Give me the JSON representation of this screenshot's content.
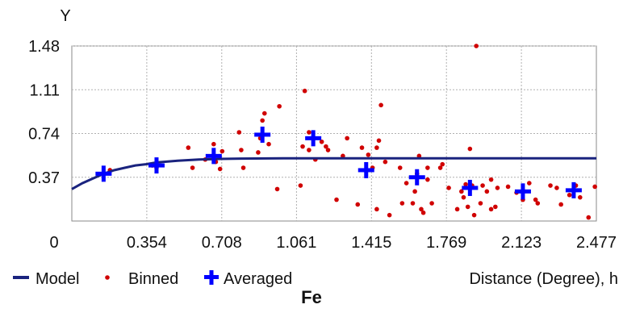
{
  "caption": "Fe",
  "chart_data": {
    "type": "scatter",
    "title": "",
    "ylabel": "Y",
    "xlabel": "Distance (Degree), h",
    "xlim": [
      0,
      2.477
    ],
    "ylim": [
      0,
      1.48
    ],
    "x_ticks": [
      "0",
      "0.354",
      "0.708",
      "1.061",
      "1.415",
      "1.769",
      "2.123",
      "2.477"
    ],
    "y_ticks": [
      "0.37",
      "0.74",
      "1.11",
      "1.48"
    ],
    "grid": true,
    "legend_position": "bottom-left",
    "colors": {
      "model": "#1a237e",
      "binned": "#d00000",
      "averaged": "#0000ff",
      "grid": "#b0b0b0"
    },
    "series": [
      {
        "name": "Model",
        "kind": "line",
        "x": [
          0,
          0.05,
          0.1,
          0.15,
          0.2,
          0.25,
          0.3,
          0.35,
          0.4,
          0.5,
          0.6,
          0.7,
          0.8,
          1.0,
          1.5,
          2.0,
          2.477
        ],
        "y": [
          0.27,
          0.32,
          0.36,
          0.4,
          0.43,
          0.45,
          0.47,
          0.48,
          0.495,
          0.51,
          0.52,
          0.525,
          0.528,
          0.53,
          0.53,
          0.53,
          0.53
        ]
      },
      {
        "name": "Binned",
        "kind": "points",
        "x": [
          0.15,
          0.18,
          0.38,
          0.4,
          0.55,
          0.57,
          0.63,
          0.67,
          0.68,
          0.7,
          0.71,
          0.79,
          0.8,
          0.81,
          0.88,
          0.89,
          0.9,
          0.91,
          0.93,
          0.97,
          0.98,
          1.08,
          1.09,
          1.1,
          1.12,
          1.12,
          1.15,
          1.18,
          1.2,
          1.21,
          1.25,
          1.28,
          1.3,
          1.35,
          1.37,
          1.4,
          1.42,
          1.44,
          1.44,
          1.45,
          1.46,
          1.48,
          1.5,
          1.55,
          1.56,
          1.58,
          1.61,
          1.62,
          1.63,
          1.64,
          1.65,
          1.66,
          1.68,
          1.68,
          1.7,
          1.74,
          1.75,
          1.78,
          1.82,
          1.84,
          1.85,
          1.86,
          1.87,
          1.88,
          1.89,
          1.9,
          1.91,
          1.93,
          1.94,
          1.96,
          1.98,
          1.98,
          2.0,
          2.01,
          2.06,
          2.1,
          2.13,
          2.16,
          2.19,
          2.2,
          2.26,
          2.29,
          2.31,
          2.35,
          2.38,
          2.4,
          2.44,
          2.47
        ],
        "y": [
          0.4,
          0.43,
          0.47,
          0.45,
          0.62,
          0.45,
          0.52,
          0.65,
          0.5,
          0.44,
          0.59,
          0.75,
          0.6,
          0.45,
          0.58,
          0.7,
          0.85,
          0.91,
          0.65,
          0.27,
          0.97,
          0.3,
          0.63,
          1.1,
          0.6,
          0.75,
          0.52,
          0.67,
          0.63,
          0.6,
          0.18,
          0.55,
          0.7,
          0.14,
          0.62,
          0.56,
          0.45,
          0.1,
          0.62,
          0.68,
          0.98,
          0.5,
          0.05,
          0.45,
          0.15,
          0.32,
          0.15,
          0.25,
          0.4,
          0.55,
          0.1,
          0.07,
          0.45,
          0.35,
          0.15,
          0.45,
          0.48,
          0.28,
          0.1,
          0.25,
          0.2,
          0.31,
          0.12,
          0.61,
          0.3,
          0.05,
          1.48,
          0.15,
          0.3,
          0.25,
          0.1,
          0.35,
          0.12,
          0.28,
          0.29,
          0.24,
          0.18,
          0.32,
          0.18,
          0.15,
          0.3,
          0.28,
          0.14,
          0.22,
          0.3,
          0.2,
          0.03,
          0.29
        ]
      },
      {
        "name": "Averaged",
        "kind": "cross",
        "x": [
          0.15,
          0.4,
          0.67,
          0.9,
          1.14,
          1.39,
          1.63,
          1.88,
          2.13,
          2.37
        ],
        "y": [
          0.4,
          0.47,
          0.55,
          0.73,
          0.7,
          0.43,
          0.37,
          0.28,
          0.25,
          0.26
        ]
      }
    ]
  }
}
